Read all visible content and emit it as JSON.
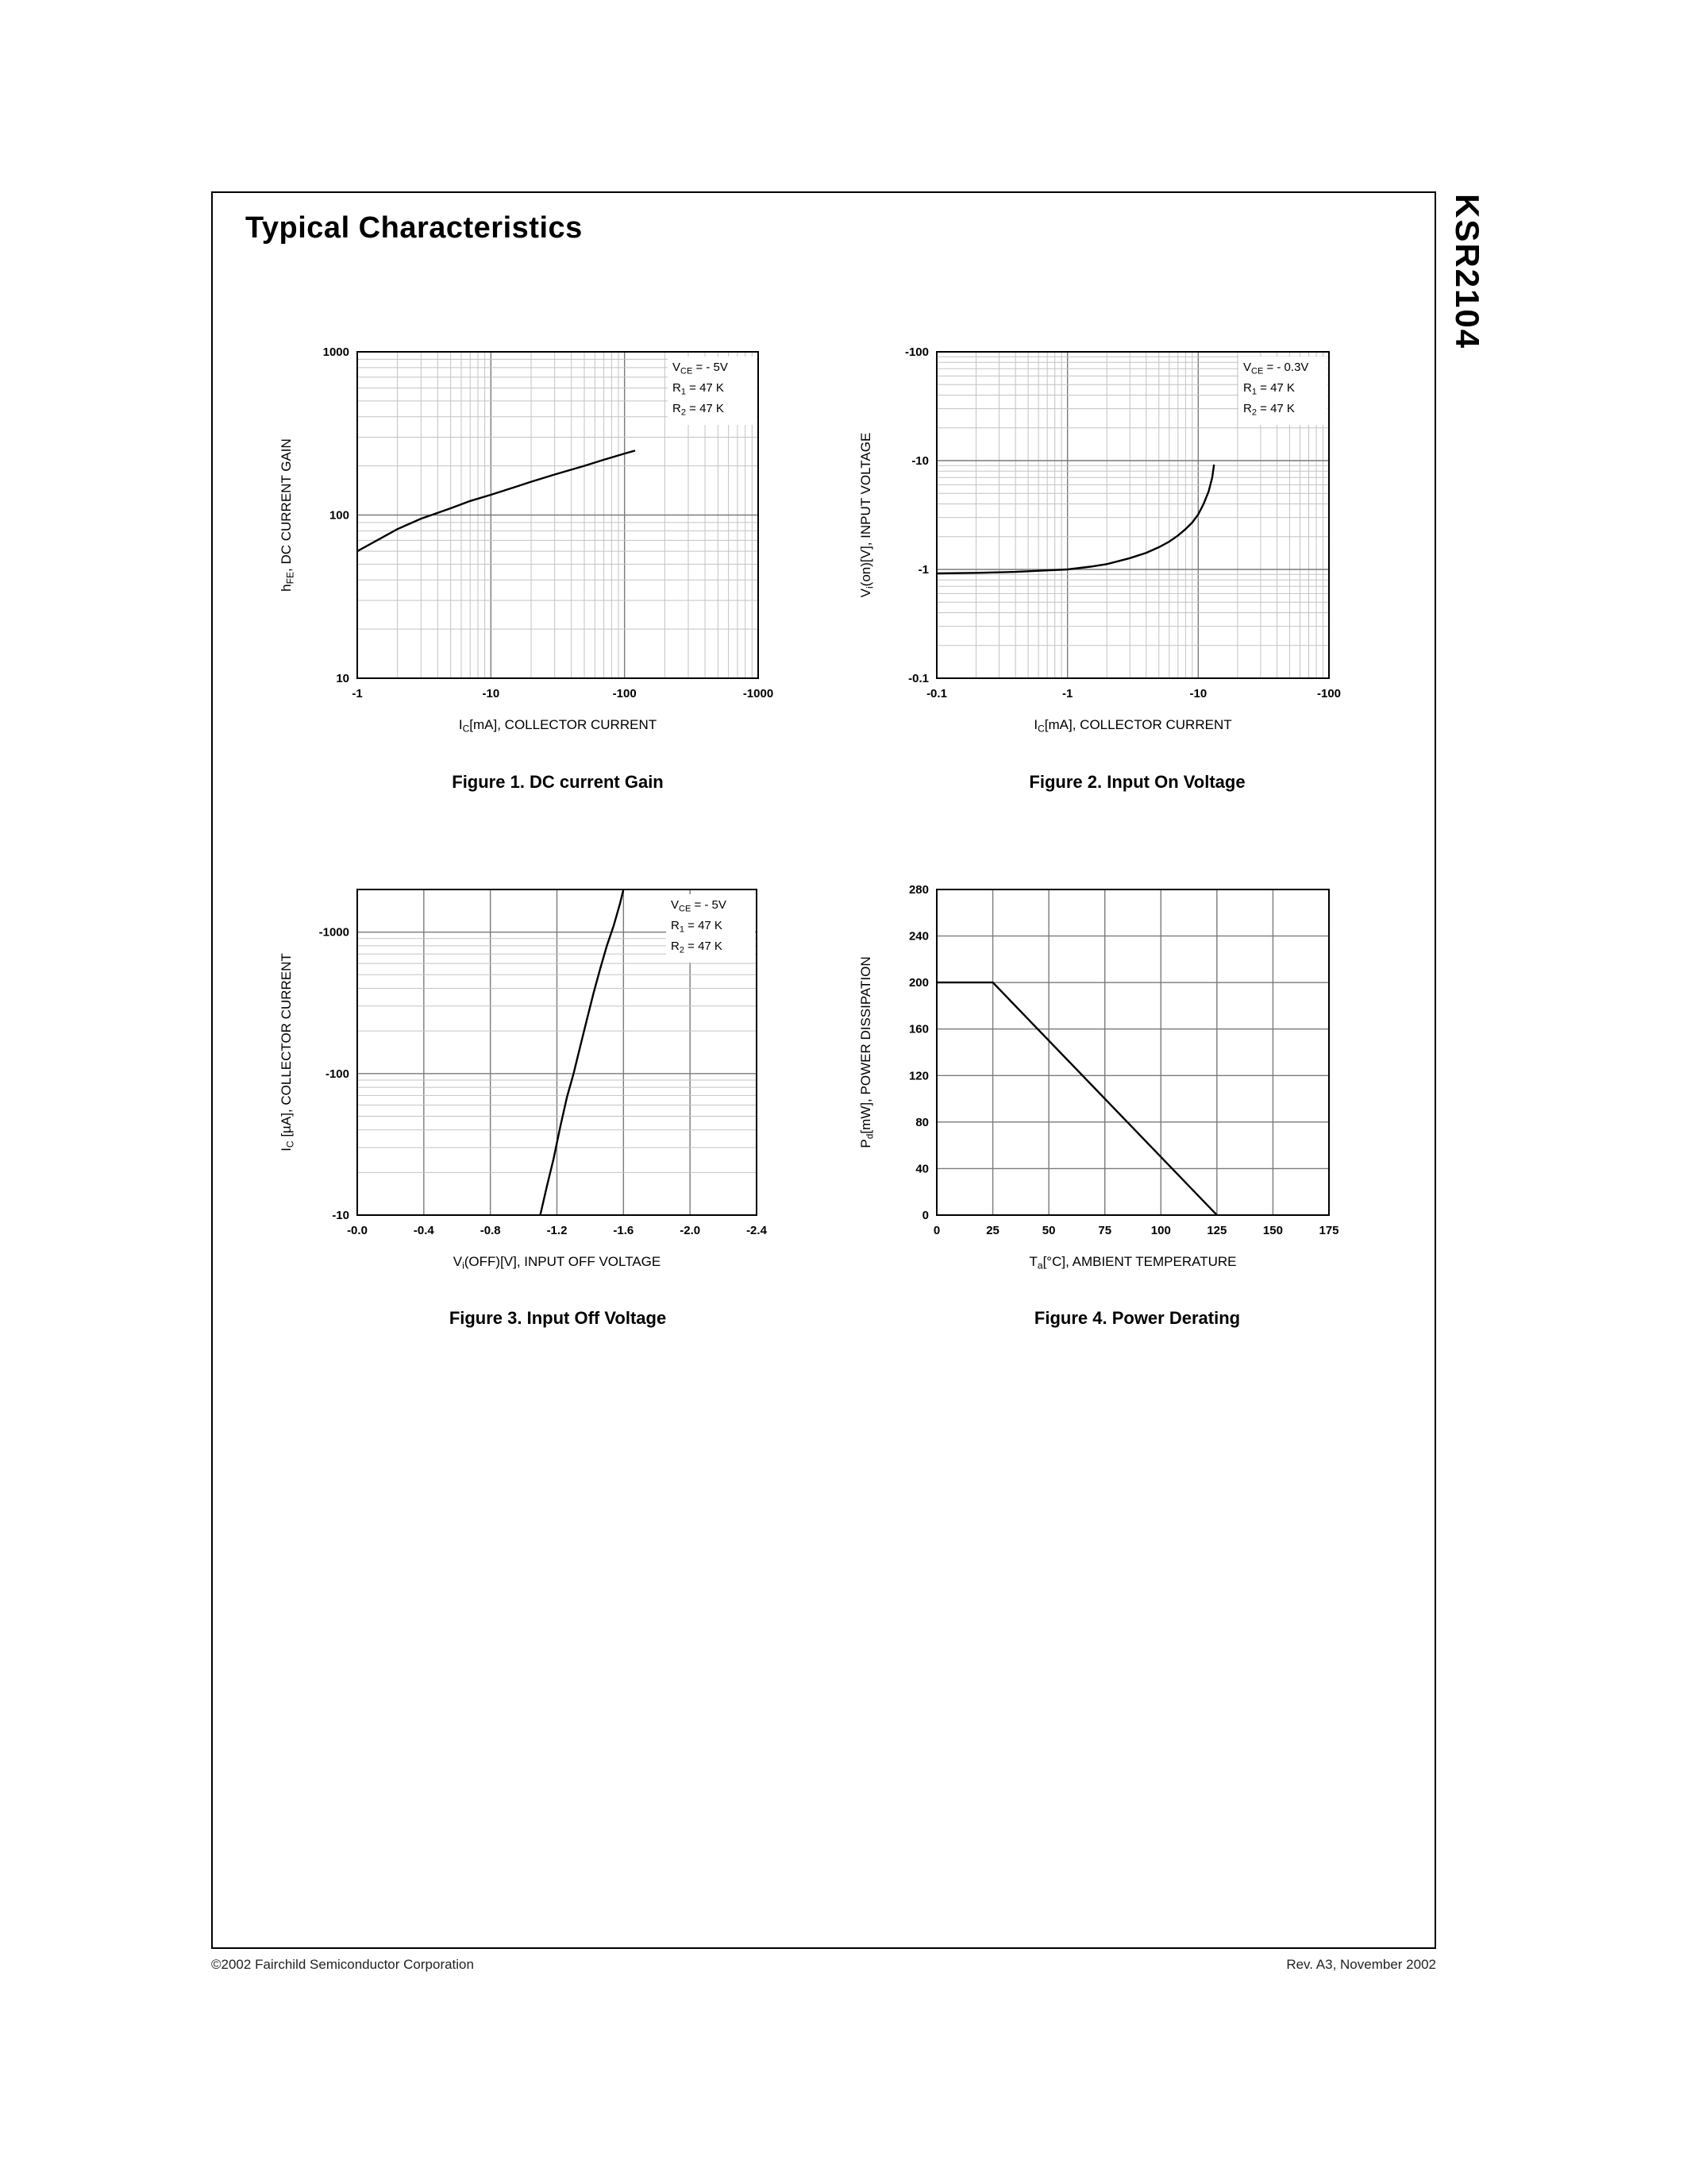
{
  "page": {
    "title": "Typical Characteristics",
    "part_number": "KSR2104",
    "footer_left": "©2002 Fairchild Semiconductor Corporation",
    "footer_right": "Rev. A3, November 2002"
  },
  "colors": {
    "grid_minor": "#c3c3c3",
    "grid_major": "#7a7a7a",
    "curve": "#000000",
    "text": "#000000"
  },
  "chart_data": [
    {
      "id": "fig1",
      "type": "line",
      "caption": "Figure 1. DC current Gain",
      "xlabel": "I_C_[mA], COLLECTOR CURRENT",
      "ylabel": "h_FE_, DC CURRENT GAIN",
      "x_axis": {
        "scale": "log",
        "min": 1,
        "max": 1000,
        "ticks": [
          1,
          10,
          100,
          1000
        ],
        "tick_labels": [
          "-1",
          "-10",
          "-100",
          "-1000"
        ]
      },
      "y_axis": {
        "scale": "log",
        "min": 10,
        "max": 1000,
        "ticks": [
          10,
          100,
          1000
        ],
        "tick_labels": [
          "10",
          "100",
          "1000"
        ]
      },
      "conditions": [
        "V_CE_ = - 5V",
        "R_1_ = 47 K",
        "R_2_ = 47 K"
      ],
      "series": [
        {
          "name": "hFE vs IC",
          "points": [
            [
              1,
              60
            ],
            [
              1.5,
              72
            ],
            [
              2,
              82
            ],
            [
              3,
              95
            ],
            [
              5,
              110
            ],
            [
              7,
              122
            ],
            [
              10,
              133
            ],
            [
              15,
              148
            ],
            [
              20,
              160
            ],
            [
              30,
              177
            ],
            [
              50,
              200
            ],
            [
              70,
              218
            ],
            [
              100,
              238
            ],
            [
              120,
              248
            ]
          ]
        }
      ]
    },
    {
      "id": "fig2",
      "type": "line",
      "caption": "Figure 2. Input On Voltage",
      "xlabel": "I_C_[mA], COLLECTOR CURRENT",
      "ylabel": "V_i_(on)[V], INPUT VOLTAGE",
      "x_axis": {
        "scale": "log",
        "min": 0.1,
        "max": 100,
        "ticks": [
          0.1,
          1,
          10,
          100
        ],
        "tick_labels": [
          "-0.1",
          "-1",
          "-10",
          "-100"
        ]
      },
      "y_axis": {
        "scale": "log",
        "min": 0.1,
        "max": 100,
        "ticks": [
          0.1,
          1,
          10,
          100
        ],
        "tick_labels": [
          "-0.1",
          "-1",
          "-10",
          "-100"
        ]
      },
      "conditions": [
        "V_CE_ = - 0.3V",
        "R_1_ = 47 K",
        "R_2_ = 47 K"
      ],
      "series": [
        {
          "name": "Vi(on) vs IC",
          "points": [
            [
              0.1,
              0.92
            ],
            [
              0.2,
              0.93
            ],
            [
              0.4,
              0.95
            ],
            [
              0.7,
              0.98
            ],
            [
              1,
              1.0
            ],
            [
              1.5,
              1.06
            ],
            [
              2,
              1.12
            ],
            [
              3,
              1.27
            ],
            [
              4,
              1.42
            ],
            [
              5,
              1.6
            ],
            [
              6,
              1.8
            ],
            [
              7,
              2.05
            ],
            [
              8,
              2.35
            ],
            [
              9,
              2.7
            ],
            [
              10,
              3.2
            ],
            [
              11,
              4.0
            ],
            [
              12,
              5.2
            ],
            [
              12.8,
              7.0
            ],
            [
              13.2,
              9.2
            ]
          ]
        }
      ]
    },
    {
      "id": "fig3",
      "type": "line",
      "caption": "Figure 3. Input Off Voltage",
      "xlabel": "V_i_(OFF)[V], INPUT OFF VOLTAGE",
      "ylabel": "I_C_ [µA], COLLECTOR CURRENT",
      "x_axis": {
        "scale": "linear",
        "min": 0,
        "max": 2.4,
        "ticks": [
          0,
          0.4,
          0.8,
          1.2,
          1.6,
          2.0,
          2.4
        ],
        "tick_labels": [
          "-0.0",
          "-0.4",
          "-0.8",
          "-1.2",
          "-1.6",
          "-2.0",
          "-2.4"
        ]
      },
      "y_axis": {
        "scale": "log",
        "min": 10,
        "max": 2000,
        "ticks": [
          10,
          100,
          1000
        ],
        "tick_labels": [
          "-10",
          "-100",
          "-1000"
        ]
      },
      "conditions": [
        "V_CE_ = - 5V",
        "R_1_ = 47 K",
        "R_2_ = 47 K"
      ],
      "series": [
        {
          "name": "IC vs Vi(OFF)",
          "points": [
            [
              1.1,
              10
            ],
            [
              1.14,
              16
            ],
            [
              1.18,
              25
            ],
            [
              1.22,
              42
            ],
            [
              1.26,
              68
            ],
            [
              1.3,
              100
            ],
            [
              1.34,
              155
            ],
            [
              1.38,
              240
            ],
            [
              1.42,
              370
            ],
            [
              1.46,
              550
            ],
            [
              1.5,
              800
            ],
            [
              1.54,
              1100
            ],
            [
              1.58,
              1600
            ],
            [
              1.6,
              2000
            ]
          ]
        }
      ]
    },
    {
      "id": "fig4",
      "type": "line",
      "caption": "Figure 4. Power Derating",
      "xlabel": "T_a_[°C], AMBIENT TEMPERATURE",
      "ylabel": "P_d_[mW], POWER DISSIPATION",
      "x_axis": {
        "scale": "linear",
        "min": 0,
        "max": 175,
        "ticks": [
          0,
          25,
          50,
          75,
          100,
          125,
          150,
          175
        ],
        "tick_labels": [
          "0",
          "25",
          "50",
          "75",
          "100",
          "125",
          "150",
          "175"
        ]
      },
      "y_axis": {
        "scale": "linear",
        "min": 0,
        "max": 280,
        "ticks": [
          0,
          40,
          80,
          120,
          160,
          200,
          240,
          280
        ],
        "tick_labels": [
          "0",
          "40",
          "80",
          "120",
          "160",
          "200",
          "240",
          "280"
        ]
      },
      "conditions": [],
      "series": [
        {
          "name": "Pd vs Ta",
          "points": [
            [
              0,
              200
            ],
            [
              25,
              200
            ],
            [
              125,
              0
            ]
          ]
        }
      ]
    }
  ]
}
